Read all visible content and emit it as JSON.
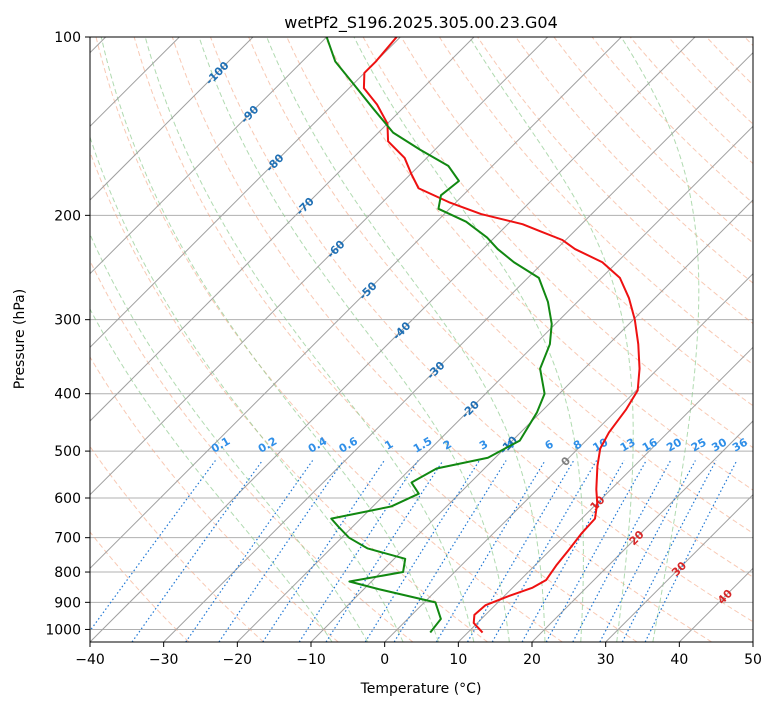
{
  "chart_data": {
    "type": "line",
    "title": "wetPf2_S196.2025.305.00.23.G04",
    "xlabel": "Temperature (°C)",
    "ylabel": "Pressure (hPa)",
    "xlim": [
      -40,
      50
    ],
    "ylim": [
      1050,
      100
    ],
    "yscale": "log",
    "x_ticks": [
      -40,
      -30,
      -20,
      -10,
      0,
      10,
      20,
      30,
      40,
      50
    ],
    "x_tick_labels": [
      "−40",
      "−30",
      "−20",
      "−10",
      "0",
      "10",
      "20",
      "30",
      "40",
      "50"
    ],
    "y_ticks": [
      1000,
      900,
      800,
      700,
      600,
      500,
      400,
      300,
      200,
      100
    ],
    "y_tick_labels": [
      "1000",
      "900",
      "800",
      "700",
      "600",
      "500",
      "400",
      "300",
      "200",
      "100"
    ],
    "grid": true,
    "skew_lines": {
      "color": "#a0a0a0",
      "temperatures": [
        -140,
        -130,
        -120,
        -110,
        -100,
        -90,
        -80,
        -70,
        -60,
        -50,
        -40,
        -30,
        -20,
        -10,
        0,
        10,
        20,
        30,
        40,
        50
      ]
    },
    "dry_adiabats": {
      "color": "#f4a582",
      "theta_c": [
        -30,
        -20,
        -10,
        0,
        10,
        20,
        30,
        40,
        50,
        60,
        70,
        80,
        90,
        100,
        110,
        120,
        130,
        140,
        150,
        160,
        170,
        180,
        190,
        200
      ]
    },
    "moist_adiabats": {
      "color": "#8fca8f",
      "theta_w_c": [
        -10,
        -5,
        0,
        5,
        10,
        15,
        20,
        25,
        30,
        35
      ]
    },
    "mixing_ratio_lines": {
      "color": "#1f77d4",
      "label_pressure": 500,
      "values": [
        0.1,
        0.2,
        0.4,
        0.6,
        1,
        1.5,
        2,
        3,
        4,
        6,
        8,
        10,
        13,
        16,
        20,
        25,
        30,
        36
      ],
      "labels": [
        "0.1",
        "0.2",
        "0.4",
        "0.6",
        "1",
        "1.5",
        "2",
        "3",
        "4",
        "6",
        "8",
        "10",
        "13",
        "16",
        "20",
        "25",
        "30",
        "36"
      ]
    },
    "blue_isotherm_labels": {
      "color": "#1f6fb4",
      "items": [
        {
          "label": "-100",
          "t": -100,
          "p": 115
        },
        {
          "label": "-90",
          "t": -90,
          "p": 135
        },
        {
          "label": "-80",
          "t": -80,
          "p": 163
        },
        {
          "label": "-70",
          "t": -70,
          "p": 193
        },
        {
          "label": "-60",
          "t": -60,
          "p": 228
        },
        {
          "label": "-50",
          "t": -50,
          "p": 268
        },
        {
          "label": "-40",
          "t": -40,
          "p": 313
        },
        {
          "label": "-30",
          "t": -30,
          "p": 365
        },
        {
          "label": "-20",
          "t": -20,
          "p": 425
        },
        {
          "label": "-10",
          "t": -10,
          "p": 488
        }
      ]
    },
    "red_isotherm_labels": {
      "items": [
        {
          "label": "0",
          "t": 0,
          "p": 520,
          "color": "#7f7f7f"
        },
        {
          "label": "10",
          "t": 10,
          "p": 612,
          "color": "#d62728"
        },
        {
          "label": "20",
          "t": 20,
          "p": 700,
          "color": "#d62728"
        },
        {
          "label": "30",
          "t": 30,
          "p": 790,
          "color": "#d62728"
        },
        {
          "label": "40",
          "t": 40,
          "p": 880,
          "color": "#d62728"
        }
      ]
    },
    "series": [
      {
        "name": "Temperature",
        "color": "#ee1111",
        "points": [
          [
            12.0,
            1012
          ],
          [
            9.5,
            975
          ],
          [
            8.5,
            945
          ],
          [
            8.7,
            910
          ],
          [
            10.5,
            880
          ],
          [
            12.7,
            850
          ],
          [
            13.5,
            825
          ],
          [
            12.9,
            780
          ],
          [
            12.5,
            735
          ],
          [
            12.0,
            690
          ],
          [
            11.8,
            650
          ],
          [
            10.0,
            612
          ],
          [
            8.0,
            580
          ],
          [
            5.0,
            530
          ],
          [
            3.0,
            495
          ],
          [
            2.0,
            465
          ],
          [
            1.2,
            425
          ],
          [
            0.2,
            395
          ],
          [
            -2.5,
            363
          ],
          [
            -6.0,
            330
          ],
          [
            -9.8,
            300
          ],
          [
            -13.5,
            276
          ],
          [
            -17.5,
            255
          ],
          [
            -22.0,
            240
          ],
          [
            -27.5,
            228
          ],
          [
            -30.5,
            220
          ],
          [
            -34.5,
            213
          ],
          [
            -38.0,
            207
          ],
          [
            -45.0,
            199
          ],
          [
            -51.0,
            190
          ],
          [
            -57.0,
            180
          ],
          [
            -60.0,
            170
          ],
          [
            -63.0,
            160
          ],
          [
            -67.5,
            150
          ],
          [
            -70.0,
            140
          ],
          [
            -74.0,
            130
          ],
          [
            -78.0,
            122
          ],
          [
            -80.0,
            115
          ],
          [
            -80.0,
            110
          ],
          [
            -80.5,
            100
          ]
        ]
      },
      {
        "name": "Dew point",
        "color": "#118811",
        "points": [
          [
            4.9,
            1012
          ],
          [
            4.5,
            960
          ],
          [
            1.5,
            900
          ],
          [
            -8.0,
            855
          ],
          [
            -13.0,
            830
          ],
          [
            -7.0,
            800
          ],
          [
            -8.5,
            760
          ],
          [
            -15.0,
            730
          ],
          [
            -19.0,
            700
          ],
          [
            -22.0,
            670
          ],
          [
            -24.0,
            650
          ],
          [
            -17.5,
            620
          ],
          [
            -15.5,
            590
          ],
          [
            -18.0,
            565
          ],
          [
            -16.5,
            535
          ],
          [
            -11.0,
            513
          ],
          [
            -9.0,
            480
          ],
          [
            -10.5,
            430
          ],
          [
            -12.0,
            400
          ],
          [
            -16.0,
            363
          ],
          [
            -18.0,
            330
          ],
          [
            -20.5,
            305
          ],
          [
            -24.0,
            280
          ],
          [
            -28.5,
            255
          ],
          [
            -34.0,
            240
          ],
          [
            -38.0,
            228
          ],
          [
            -41.0,
            218
          ],
          [
            -46.0,
            205
          ],
          [
            -51.5,
            195
          ],
          [
            -53.0,
            185
          ],
          [
            -52.5,
            175
          ],
          [
            -56.0,
            165
          ],
          [
            -62.0,
            155
          ],
          [
            -68.0,
            145
          ],
          [
            -74.0,
            132
          ],
          [
            -80.0,
            120
          ],
          [
            -85.5,
            110
          ],
          [
            -90.0,
            100
          ]
        ]
      }
    ]
  }
}
